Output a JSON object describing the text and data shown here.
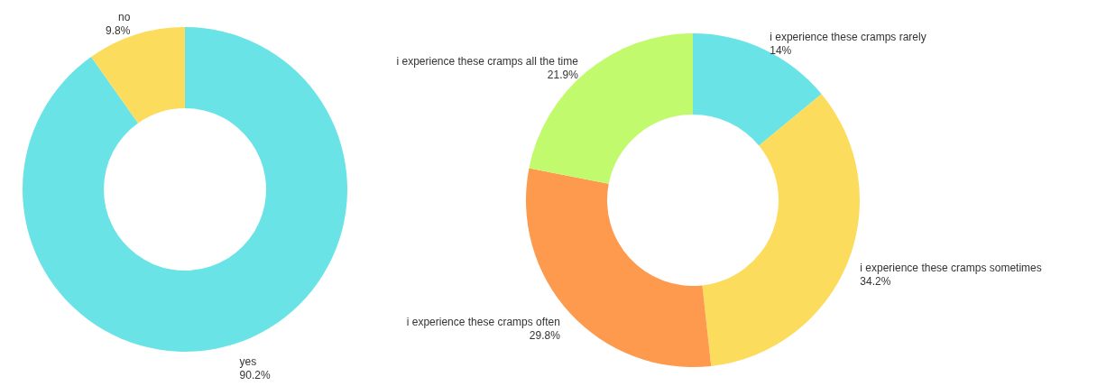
{
  "chart_data": [
    {
      "type": "donut",
      "categories": [
        "yes",
        "no"
      ],
      "values": [
        90.2,
        9.8
      ],
      "colors": [
        "#6ae3e6",
        "#fcdc5c"
      ],
      "value_labels": [
        "90.2%",
        "9.8%"
      ]
    },
    {
      "type": "donut",
      "categories": [
        "i experience these cramps rarely",
        "i experience these cramps sometimes",
        "i experience these cramps often",
        "i experience these cramps all the time"
      ],
      "values": [
        14,
        34.2,
        29.8,
        21.9
      ],
      "colors": [
        "#6ae3e6",
        "#fcdc5c",
        "#fd9a4e",
        "#c2fa6e"
      ],
      "value_labels": [
        "14%",
        "34.2%",
        "29.8%",
        "21.9%"
      ]
    }
  ]
}
